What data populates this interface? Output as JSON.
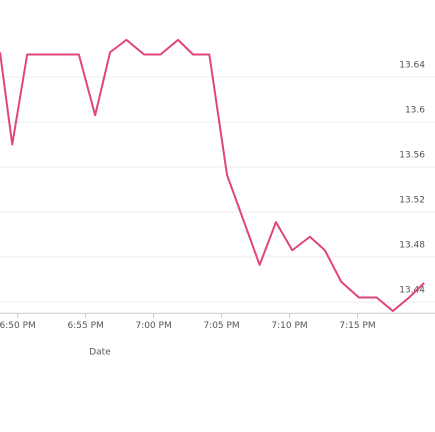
{
  "chart_data": {
    "type": "line",
    "x_label": "Date",
    "x": [
      -1.3,
      -0.4,
      0.7,
      4.5,
      5.7,
      6.8,
      8.0,
      9.3,
      10.5,
      11.8,
      12.9,
      14.1,
      15.4,
      17.8,
      19.0,
      20.2,
      21.5,
      22.6,
      23.8,
      25.1,
      26.4,
      27.6,
      28.8,
      29.9
    ],
    "series": [
      {
        "color": "#e0457b",
        "values": [
          13.662,
          13.58,
          13.66,
          13.66,
          13.606,
          13.662,
          13.673,
          13.66,
          13.66,
          13.673,
          13.66,
          13.66,
          13.553,
          13.473,
          13.511,
          13.486,
          13.498,
          13.486,
          13.458,
          13.444,
          13.444,
          13.432,
          13.444,
          13.457
        ]
      }
    ],
    "xlim": [
      -1.3,
      30.7
    ],
    "xticks": [
      {
        "value": 0,
        "label": "6:50 PM"
      },
      {
        "value": 5,
        "label": "6:55 PM"
      },
      {
        "value": 10,
        "label": "7:00 PM"
      },
      {
        "value": 15,
        "label": "7:05 PM"
      },
      {
        "value": 20,
        "label": "7:10 PM"
      },
      {
        "value": 25,
        "label": "7:15 PM"
      }
    ],
    "ylim": [
      13.43,
      13.7
    ],
    "yticks": [
      13.44,
      13.48,
      13.52,
      13.56,
      13.6,
      13.64
    ],
    "grid": true
  }
}
